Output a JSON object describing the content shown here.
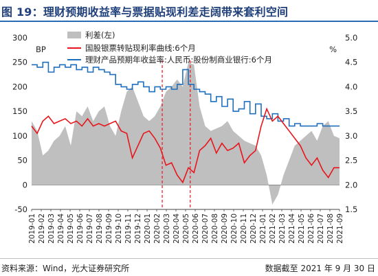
{
  "title": "图 19：理财预期收益率与票据贴现利差走阔带来套利空间",
  "source": "资料来源：Wind，光大证券研究所",
  "cutoff": "数据截至 2021 年 9 月 30 日",
  "colors": {
    "spread": "#bfbfbf",
    "bill": "#e8141b",
    "wealth": "#1f6fbf",
    "marker": "#e8141b",
    "title": "#1f3f7a"
  },
  "chart_data": {
    "type": "area",
    "left_axis_unit": "BP",
    "right_axis_unit": "%",
    "ylim_left": [
      0,
      300
    ],
    "ylim_right": [
      1.5,
      5.0
    ],
    "yticks_left": [
      "300",
      "250",
      "200",
      "150",
      "100",
      "50",
      "0",
      "-50"
    ],
    "yticks_right": [
      "5.0",
      "4.5",
      "4.0",
      "3.5",
      "3.0",
      "2.5",
      "2.0",
      "1.5"
    ],
    "yticks_left_values": [
      300,
      250,
      200,
      150,
      100,
      50,
      0,
      -50
    ],
    "yticks_right_values": [
      5.0,
      4.5,
      4.0,
      3.5,
      3.0,
      2.5,
      2.0,
      1.5
    ],
    "xticks": [
      "2019-01",
      "2019-02",
      "2019-03",
      "2019-04",
      "2019-05",
      "2019-06",
      "2019-07",
      "2019-08",
      "2019-09",
      "2019-10",
      "2019-11",
      "2019-12",
      "2020-01",
      "2020-02",
      "2020-03",
      "2020-04",
      "2020-05",
      "2020-06",
      "2020-07",
      "2020-08",
      "2020-09",
      "2020-10",
      "2020-11",
      "2020-12",
      "2021-01",
      "2021-02",
      "2021-03",
      "2021-04",
      "2021-05",
      "2021-06",
      "2021-07",
      "2021-08",
      "2021-09"
    ],
    "reference_lines": [
      "2020-03",
      "2020-06"
    ],
    "legend": [
      "利差(左)",
      "国股银票转贴现利率曲线:6个月",
      "理财产品预期年收益率:人民币:股份制商业银行:6个月"
    ],
    "series": [
      {
        "name": "利差(左)",
        "axis": "left",
        "kind": "area",
        "x": [
          2019.0,
          2019.05,
          2019.1,
          2019.15,
          2019.2,
          2019.25,
          2019.3,
          2019.35,
          2019.4,
          2019.45,
          2019.5,
          2019.55,
          2019.6,
          2019.65,
          2019.7,
          2019.75,
          2019.8,
          2019.85,
          2019.9,
          2019.95,
          2020.0,
          2020.05,
          2020.1,
          2020.15,
          2020.2,
          2020.25,
          2020.3,
          2020.35,
          2020.4,
          2020.45,
          2020.5,
          2020.55,
          2020.6,
          2020.65,
          2020.7,
          2020.75,
          2020.8,
          2020.85,
          2020.9,
          2020.95,
          2021.0,
          2021.05,
          2021.1,
          2021.15,
          2021.2,
          2021.25,
          2021.3,
          2021.35,
          2021.4,
          2021.45,
          2021.5,
          2021.55,
          2021.6,
          2021.65,
          2021.7,
          2021.75
        ],
        "values": [
          130,
          110,
          60,
          70,
          90,
          100,
          120,
          80,
          150,
          140,
          160,
          130,
          150,
          160,
          120,
          100,
          150,
          190,
          200,
          170,
          140,
          130,
          140,
          160,
          190,
          200,
          215,
          200,
          250,
          245,
          160,
          120,
          110,
          115,
          120,
          130,
          110,
          100,
          90,
          85,
          80,
          60,
          20,
          -40,
          -20,
          20,
          50,
          80,
          90,
          100,
          110,
          90,
          120,
          130,
          100,
          95
        ]
      },
      {
        "name": "国股银票转贴现利率曲线:6个月",
        "axis": "right",
        "kind": "line",
        "x": [
          2019.0,
          2019.05,
          2019.1,
          2019.15,
          2019.2,
          2019.25,
          2019.3,
          2019.35,
          2019.4,
          2019.45,
          2019.5,
          2019.55,
          2019.6,
          2019.65,
          2019.7,
          2019.75,
          2019.8,
          2019.85,
          2019.9,
          2019.95,
          2020.0,
          2020.05,
          2020.1,
          2020.15,
          2020.2,
          2020.25,
          2020.3,
          2020.35,
          2020.4,
          2020.45,
          2020.5,
          2020.55,
          2020.6,
          2020.65,
          2020.7,
          2020.75,
          2020.8,
          2020.85,
          2020.9,
          2020.95,
          2021.0,
          2021.05,
          2021.1,
          2021.15,
          2021.2,
          2021.25,
          2021.3,
          2021.35,
          2021.4,
          2021.45,
          2021.5,
          2021.55,
          2021.6,
          2021.65,
          2021.7,
          2021.75
        ],
        "values": [
          3.2,
          3.05,
          3.3,
          3.4,
          3.25,
          3.3,
          3.35,
          3.25,
          3.3,
          3.2,
          3.35,
          3.2,
          3.25,
          3.2,
          3.25,
          3.3,
          3.1,
          3.05,
          2.55,
          2.8,
          3.05,
          3.1,
          2.95,
          2.75,
          2.4,
          2.45,
          2.2,
          2.05,
          2.35,
          2.25,
          2.7,
          2.8,
          2.95,
          2.65,
          2.85,
          2.7,
          2.75,
          2.85,
          2.45,
          2.6,
          2.7,
          3.2,
          3.55,
          3.3,
          3.4,
          3.25,
          3.1,
          2.95,
          2.8,
          2.55,
          2.4,
          2.55,
          2.3,
          2.15,
          2.35,
          2.35
        ]
      },
      {
        "name": "理财产品预期年收益率:人民币:股份制商业银行:6个月",
        "axis": "right",
        "kind": "step",
        "x": [
          2019.0,
          2019.05,
          2019.1,
          2019.15,
          2019.2,
          2019.25,
          2019.3,
          2019.35,
          2019.4,
          2019.45,
          2019.5,
          2019.55,
          2019.6,
          2019.65,
          2019.7,
          2019.75,
          2019.8,
          2019.85,
          2019.9,
          2019.95,
          2020.0,
          2020.05,
          2020.1,
          2020.15,
          2020.2,
          2020.25,
          2020.3,
          2020.35,
          2020.4,
          2020.45,
          2020.5,
          2020.55,
          2020.6,
          2020.65,
          2020.7,
          2020.75,
          2020.8,
          2020.85,
          2020.9,
          2020.95,
          2021.0,
          2021.05,
          2021.1,
          2021.15,
          2021.2,
          2021.25,
          2021.3,
          2021.35,
          2021.4,
          2021.45,
          2021.5,
          2021.55,
          2021.6,
          2021.65,
          2021.7,
          2021.75
        ],
        "values": [
          4.45,
          4.4,
          4.5,
          4.3,
          4.4,
          4.45,
          4.4,
          4.45,
          4.35,
          4.4,
          4.3,
          4.4,
          4.35,
          4.3,
          4.25,
          4.05,
          4.0,
          3.95,
          4.05,
          4.1,
          4.0,
          3.9,
          4.0,
          3.95,
          4.0,
          3.95,
          4.05,
          4.35,
          4.05,
          3.95,
          3.9,
          3.85,
          3.7,
          3.8,
          3.6,
          3.75,
          3.5,
          3.55,
          3.7,
          3.45,
          3.65,
          3.4,
          3.35,
          3.45,
          3.3,
          3.35,
          3.2,
          3.25,
          3.2,
          3.2,
          3.2,
          3.25,
          3.2,
          3.2,
          3.2,
          3.2
        ]
      }
    ]
  }
}
